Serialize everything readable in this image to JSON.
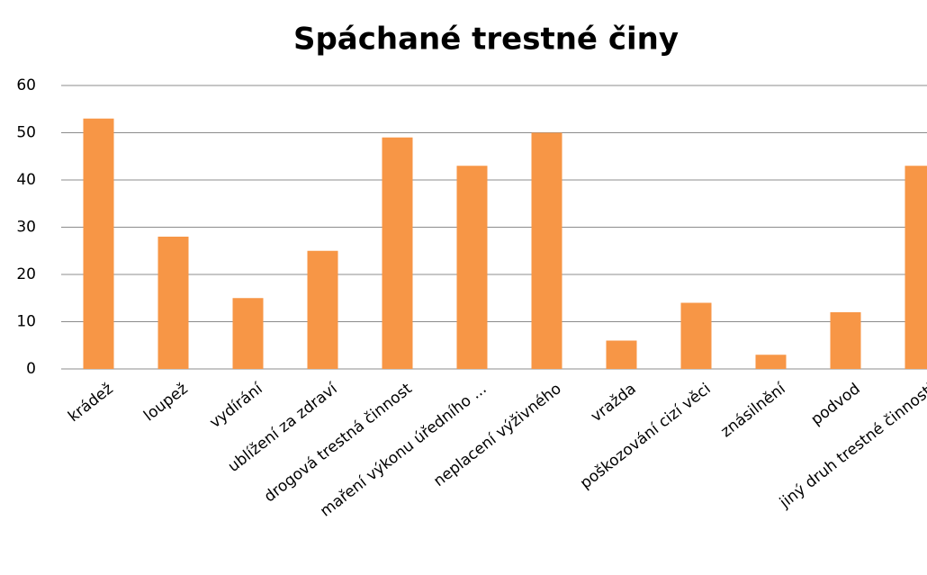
{
  "chart_data": {
    "type": "bar",
    "title": "Spáchané trestné činy",
    "categories": [
      "krádež",
      "loupež",
      "vydírání",
      "ublížení za zdraví",
      "drogová trestná činnost",
      "maření výkonu úředního ...",
      "neplacení výživného",
      "vražda",
      "poškozování cizí věci",
      "znásilnění",
      "podvod",
      "jiný druh trestné činnosti"
    ],
    "values": [
      53,
      28,
      15,
      25,
      49,
      43,
      50,
      6,
      14,
      3,
      12,
      43
    ],
    "color": "#f79646",
    "ylim": [
      0,
      60
    ],
    "yticks": [
      0,
      10,
      20,
      30,
      40,
      50,
      60
    ],
    "grid": true
  }
}
